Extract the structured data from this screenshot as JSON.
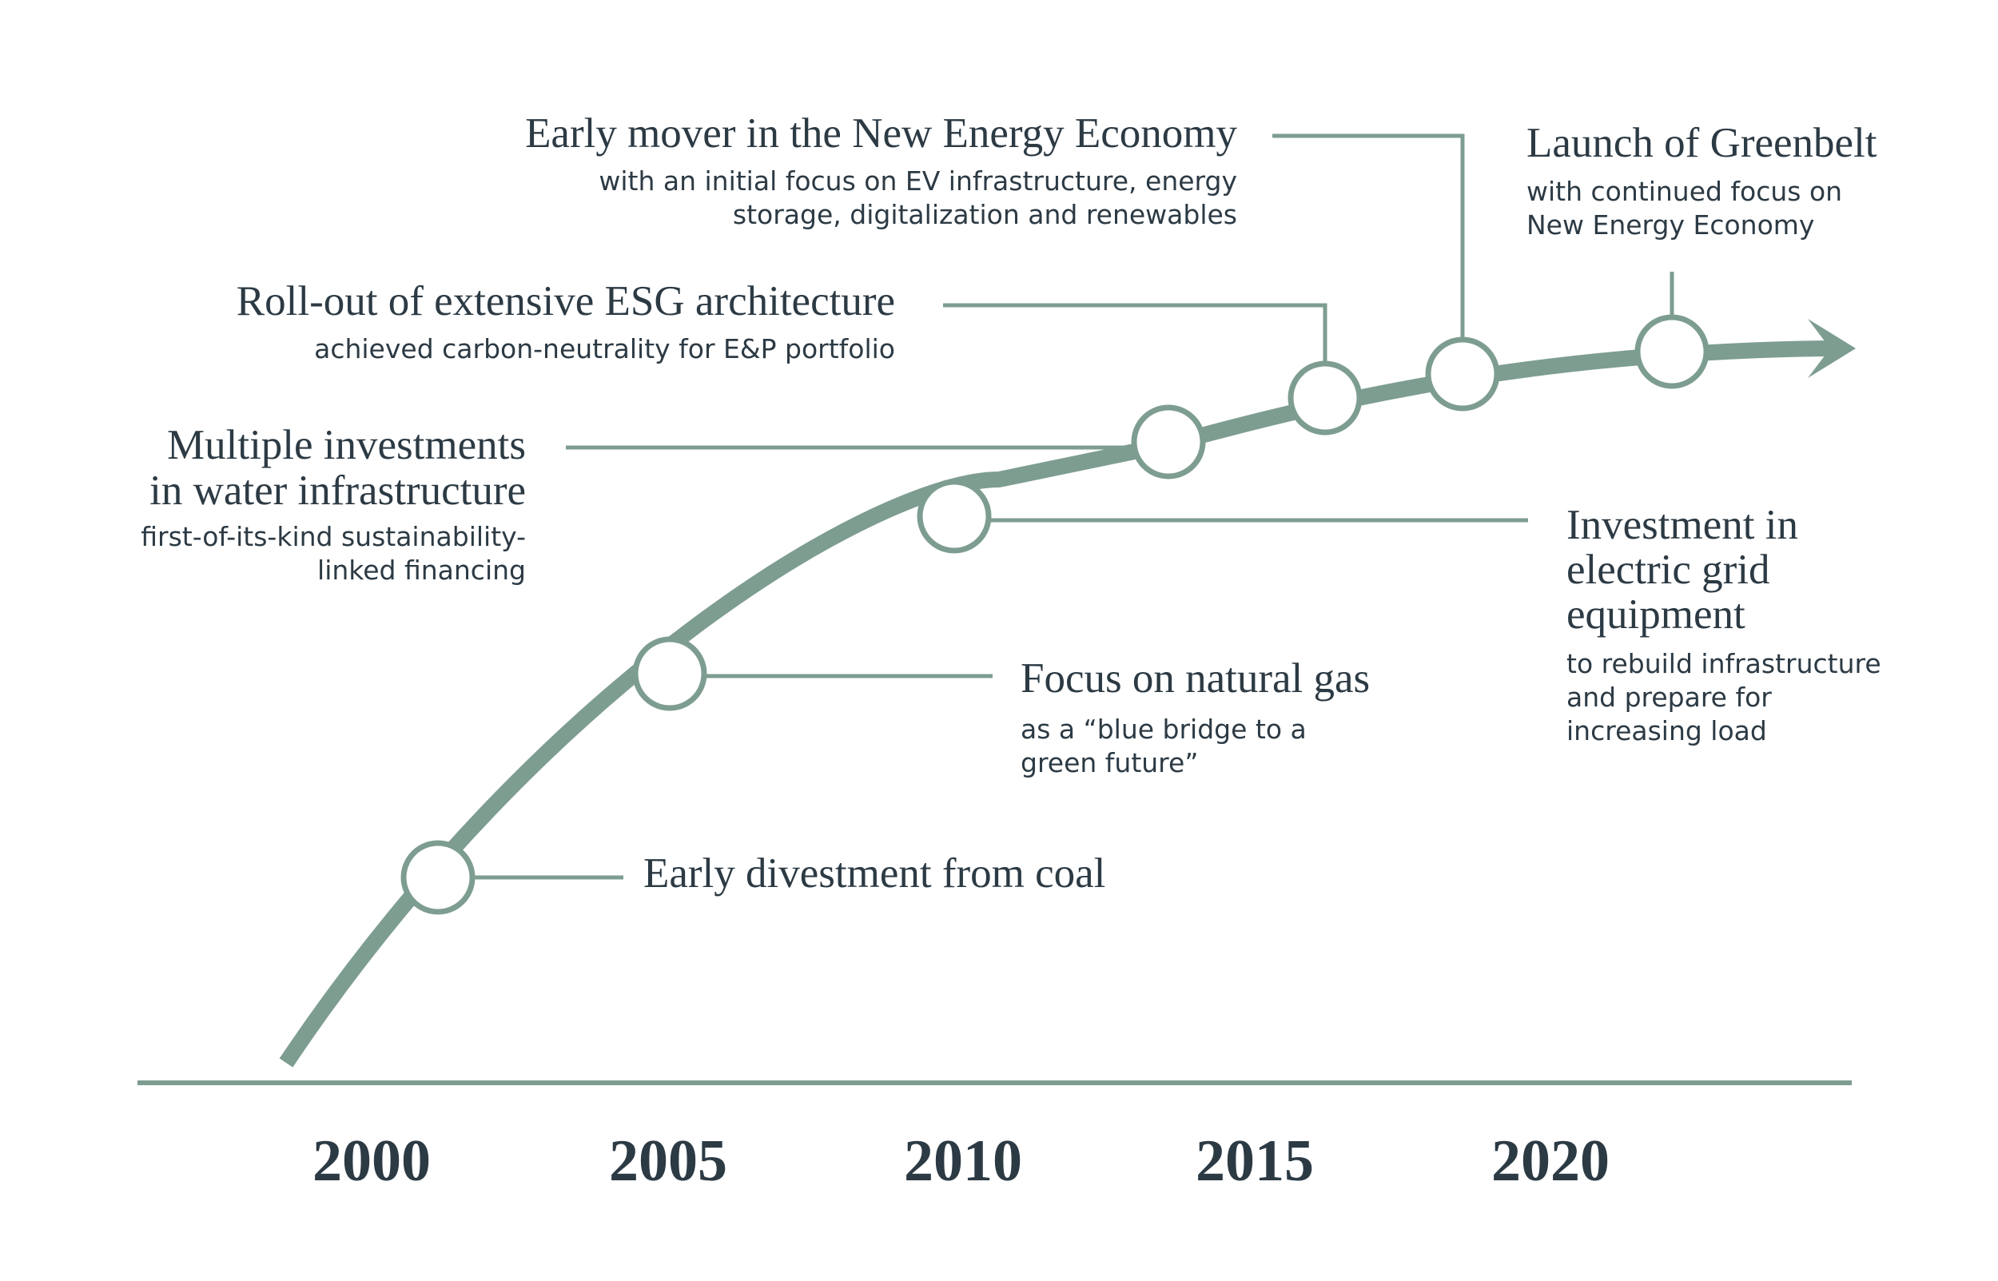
{
  "colors": {
    "accent": "#7d9d90",
    "text": "#2c3a44",
    "background": "#ffffff"
  },
  "axis": {
    "years": [
      "2000",
      "2005",
      "2010",
      "2015",
      "2020"
    ]
  },
  "milestones": [
    {
      "id": "coal",
      "title_lines": [
        "Early divestment from coal"
      ],
      "subtitle_lines": []
    },
    {
      "id": "gas",
      "title_lines": [
        "Focus on natural gas"
      ],
      "subtitle_lines": [
        "as a “blue bridge to a",
        "green future”"
      ]
    },
    {
      "id": "grid",
      "title_lines": [
        "Investment in",
        "electric grid",
        "equipment"
      ],
      "subtitle_lines": [
        "to rebuild infrastructure",
        "and prepare for",
        "increasing load"
      ]
    },
    {
      "id": "water",
      "title_lines": [
        "Multiple investments",
        "in water infrastructure"
      ],
      "subtitle_lines": [
        "first-of-its-kind sustainability-",
        "linked financing"
      ]
    },
    {
      "id": "esg",
      "title_lines": [
        "Roll-out of extensive ESG architecture"
      ],
      "subtitle_lines": [
        "achieved carbon-neutrality for E&P portfolio"
      ]
    },
    {
      "id": "new-energy",
      "title_lines": [
        "Early mover in the New Energy Economy"
      ],
      "subtitle_lines": [
        "with an initial focus on EV infrastructure, energy",
        "storage, digitalization and renewables"
      ]
    },
    {
      "id": "greenbelt",
      "title_lines": [
        "Launch of Greenbelt"
      ],
      "subtitle_lines": [
        "with continued focus on",
        "New Energy Economy"
      ]
    }
  ]
}
